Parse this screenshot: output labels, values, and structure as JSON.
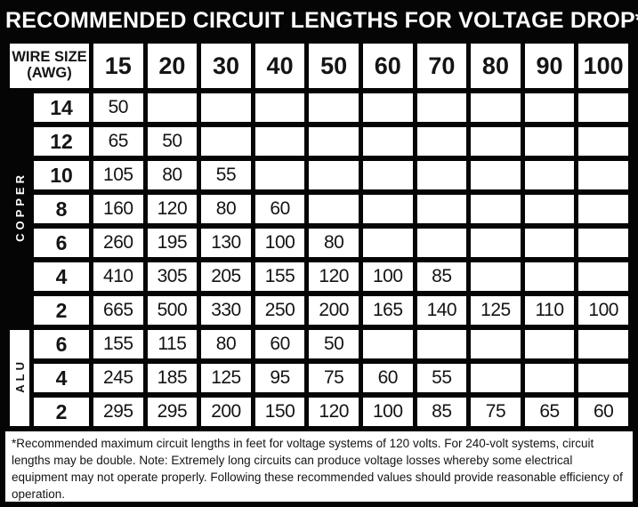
{
  "chart_data": {
    "type": "table",
    "title": "RECOMMENDED CIRCUIT LENGTHS FOR VOLTAGE DROP*",
    "corner_header": {
      "line1": "WIRE SIZE",
      "line2": "(AWG)"
    },
    "columns": [
      "15",
      "20",
      "30",
      "40",
      "50",
      "60",
      "70",
      "80",
      "90",
      "100"
    ],
    "groups": [
      {
        "material": "COPPER",
        "label_bg": "#050505",
        "label_color": "#ffffff",
        "rows": [
          {
            "wire_size": "14",
            "values": [
              "50",
              null,
              null,
              null,
              null,
              null,
              null,
              null,
              null,
              null
            ]
          },
          {
            "wire_size": "12",
            "values": [
              "65",
              "50",
              null,
              null,
              null,
              null,
              null,
              null,
              null,
              null
            ]
          },
          {
            "wire_size": "10",
            "values": [
              "105",
              "80",
              "55",
              null,
              null,
              null,
              null,
              null,
              null,
              null
            ]
          },
          {
            "wire_size": "8",
            "values": [
              "160",
              "120",
              "80",
              "60",
              null,
              null,
              null,
              null,
              null,
              null
            ]
          },
          {
            "wire_size": "6",
            "values": [
              "260",
              "195",
              "130",
              "100",
              "80",
              null,
              null,
              null,
              null,
              null
            ]
          },
          {
            "wire_size": "4",
            "values": [
              "410",
              "305",
              "205",
              "155",
              "120",
              "100",
              "85",
              null,
              null,
              null
            ]
          },
          {
            "wire_size": "2",
            "values": [
              "665",
              "500",
              "330",
              "250",
              "200",
              "165",
              "140",
              "125",
              "110",
              "100"
            ]
          }
        ]
      },
      {
        "material": "ALU",
        "label_bg": "#ffffff",
        "label_color": "#141414",
        "rows": [
          {
            "wire_size": "6",
            "values": [
              "155",
              "115",
              "80",
              "60",
              "50",
              null,
              null,
              null,
              null,
              null
            ]
          },
          {
            "wire_size": "4",
            "values": [
              "245",
              "185",
              "125",
              "95",
              "75",
              "60",
              "55",
              null,
              null,
              null
            ]
          },
          {
            "wire_size": "2",
            "values": [
              "295",
              "295",
              "200",
              "150",
              "120",
              "100",
              "85",
              "75",
              "65",
              "60"
            ]
          }
        ]
      }
    ],
    "footnote": "*Recommended maximum circuit lengths in feet for voltage systems of 120 volts. For 240-volt systems, circuit lengths may be double. Note: Extremely long circuits can produce voltage losses whereby some electrical equipment may not operate properly. Following these recommended values should provide reasonable efficiency of operation.",
    "colors": {
      "frame": "#050505",
      "cell": "#ffffff",
      "text": "#141414",
      "title_text": "#ffffff"
    }
  }
}
